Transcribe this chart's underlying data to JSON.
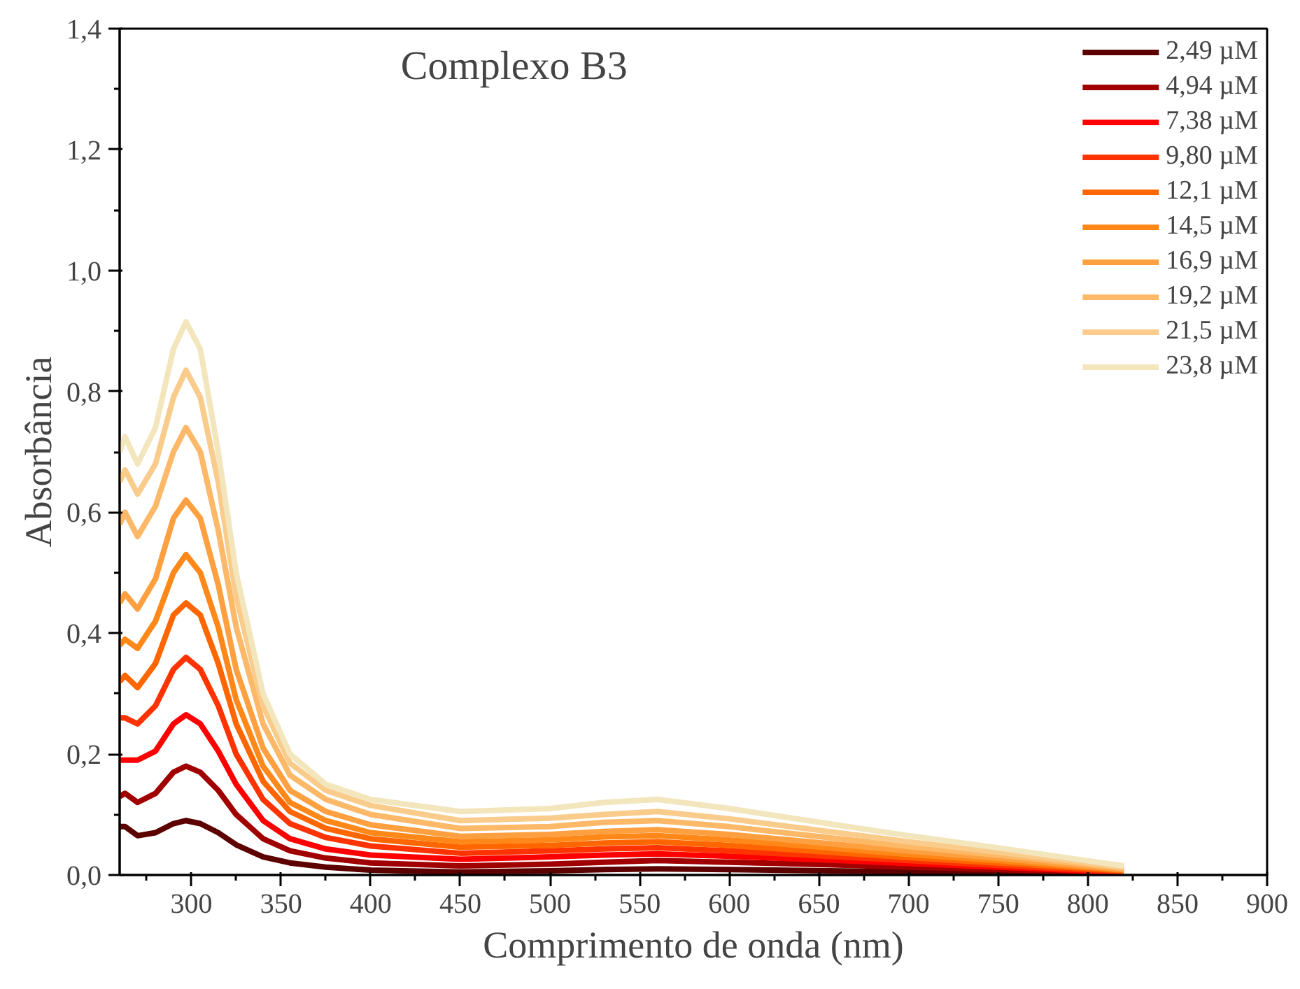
{
  "chart_data": {
    "type": "line",
    "title": "Complexo B3",
    "xlabel": "Comprimento de onda (nm)",
    "ylabel": "Absorbância",
    "x": [
      260,
      263,
      270,
      280,
      290,
      297,
      305,
      315,
      325,
      340,
      355,
      375,
      400,
      450,
      500,
      530,
      560,
      600,
      655,
      700,
      750,
      820
    ],
    "xlim": [
      260,
      900
    ],
    "ylim": [
      0,
      1.4
    ],
    "xticks": [
      300,
      350,
      400,
      450,
      500,
      550,
      600,
      650,
      700,
      750,
      800,
      850,
      900
    ],
    "yticks": [
      {
        "value": 0,
        "label": "0,0"
      },
      {
        "value": 0.2,
        "label": "0,2"
      },
      {
        "value": 0.4,
        "label": "0,4"
      },
      {
        "value": 0.6,
        "label": "0,6"
      },
      {
        "value": 0.8,
        "label": "0,8"
      },
      {
        "value": 1.0,
        "label": "1,0"
      },
      {
        "value": 1.2,
        "label": "1,2"
      },
      {
        "value": 1.4,
        "label": "1,4"
      }
    ],
    "grid": false,
    "legend": "top right",
    "line_style": "solid",
    "marker": "none",
    "series": [
      {
        "name": "2,49 µM",
        "color": "#5c0000",
        "values": [
          0.08,
          0.08,
          0.065,
          0.07,
          0.085,
          0.09,
          0.085,
          0.07,
          0.05,
          0.03,
          0.02,
          0.013,
          0.008,
          0.005,
          0.007,
          0.009,
          0.01,
          0.009,
          0.007,
          0.005,
          0.003,
          0.001
        ]
      },
      {
        "name": "4,94 µM",
        "color": "#a00000",
        "values": [
          0.13,
          0.135,
          0.12,
          0.135,
          0.17,
          0.18,
          0.17,
          0.14,
          0.1,
          0.06,
          0.04,
          0.028,
          0.02,
          0.015,
          0.018,
          0.021,
          0.024,
          0.021,
          0.017,
          0.013,
          0.009,
          0.003
        ]
      },
      {
        "name": "7,38 µM",
        "color": "#ff0000",
        "values": [
          0.19,
          0.19,
          0.19,
          0.205,
          0.25,
          0.265,
          0.25,
          0.205,
          0.15,
          0.09,
          0.06,
          0.043,
          0.033,
          0.026,
          0.03,
          0.033,
          0.035,
          0.031,
          0.025,
          0.019,
          0.013,
          0.004
        ]
      },
      {
        "name": "9,80 µM",
        "color": "#ff3300",
        "values": [
          0.26,
          0.26,
          0.25,
          0.28,
          0.34,
          0.36,
          0.34,
          0.28,
          0.2,
          0.125,
          0.085,
          0.062,
          0.048,
          0.036,
          0.04,
          0.043,
          0.045,
          0.04,
          0.031,
          0.024,
          0.016,
          0.005
        ]
      },
      {
        "name": "12,1 µM",
        "color": "#ff6600",
        "values": [
          0.32,
          0.33,
          0.31,
          0.35,
          0.43,
          0.45,
          0.43,
          0.35,
          0.25,
          0.155,
          0.105,
          0.077,
          0.06,
          0.046,
          0.049,
          0.053,
          0.055,
          0.049,
          0.038,
          0.029,
          0.02,
          0.007
        ]
      },
      {
        "name": "14,5 µM",
        "color": "#ff8819",
        "values": [
          0.38,
          0.39,
          0.375,
          0.42,
          0.5,
          0.53,
          0.5,
          0.41,
          0.29,
          0.18,
          0.12,
          0.09,
          0.07,
          0.055,
          0.058,
          0.063,
          0.065,
          0.058,
          0.045,
          0.034,
          0.024,
          0.008
        ]
      },
      {
        "name": "16,9 µM",
        "color": "#ffa040",
        "values": [
          0.45,
          0.465,
          0.44,
          0.49,
          0.59,
          0.62,
          0.59,
          0.48,
          0.34,
          0.21,
          0.14,
          0.105,
          0.083,
          0.064,
          0.067,
          0.072,
          0.075,
          0.067,
          0.052,
          0.04,
          0.028,
          0.009
        ]
      },
      {
        "name": "19,2 µM",
        "color": "#fdb868",
        "values": [
          0.58,
          0.6,
          0.56,
          0.61,
          0.7,
          0.74,
          0.7,
          0.57,
          0.41,
          0.25,
          0.165,
          0.125,
          0.1,
          0.077,
          0.08,
          0.087,
          0.09,
          0.08,
          0.062,
          0.047,
          0.033,
          0.011
        ]
      },
      {
        "name": "21,5 µM",
        "color": "#f9cc8c",
        "values": [
          0.65,
          0.67,
          0.63,
          0.68,
          0.79,
          0.835,
          0.79,
          0.65,
          0.46,
          0.28,
          0.185,
          0.14,
          0.115,
          0.09,
          0.094,
          0.1,
          0.105,
          0.093,
          0.072,
          0.055,
          0.038,
          0.013
        ]
      },
      {
        "name": "23,8 µM",
        "color": "#f3e6bd",
        "values": [
          0.7,
          0.725,
          0.68,
          0.74,
          0.87,
          0.915,
          0.87,
          0.7,
          0.5,
          0.3,
          0.2,
          0.15,
          0.125,
          0.105,
          0.11,
          0.12,
          0.125,
          0.11,
          0.085,
          0.065,
          0.045,
          0.015
        ]
      }
    ]
  }
}
